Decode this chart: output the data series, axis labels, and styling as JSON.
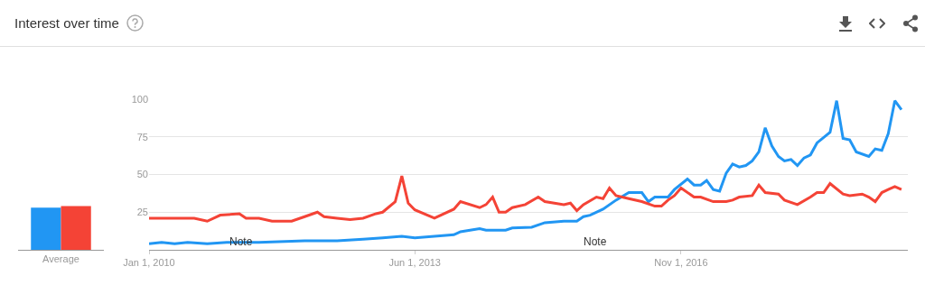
{
  "chart_data": [
    {
      "type": "bar",
      "title": "Interest over time",
      "categories": [
        "Average"
      ],
      "series": [
        {
          "color": "#2196f3",
          "values": [
            28
          ]
        },
        {
          "color": "#f44336",
          "values": [
            29
          ]
        }
      ],
      "ylim": [
        0,
        100
      ],
      "tick_labels": "x",
      "grid": false,
      "legend": false
    },
    {
      "type": "line",
      "xlim": [
        "2010-01-01",
        "2019-10-01"
      ],
      "xticks": [
        {
          "value": "2010-01-01",
          "label": "Jan 1, 2010"
        },
        {
          "value": "2013-06-01",
          "label": "Jun 1, 2013"
        },
        {
          "value": "2016-11-01",
          "label": "Nov 1, 2016"
        }
      ],
      "ylim": [
        0,
        100
      ],
      "yticks": [
        25,
        50,
        75,
        100
      ],
      "grid": "y",
      "legend": false,
      "annotations": [
        "Note",
        "Note"
      ],
      "series": [
        {
          "color": "#2196f3",
          "x": [
            "2010-01",
            "2010-03",
            "2010-05",
            "2010-07",
            "2010-10",
            "2011-01",
            "2011-06",
            "2012-01",
            "2012-06",
            "2012-10",
            "2013-01",
            "2013-04",
            "2013-06",
            "2013-09",
            "2013-12",
            "2014-01",
            "2014-04",
            "2014-05",
            "2014-08",
            "2014-09",
            "2014-12",
            "2015-02",
            "2015-05",
            "2015-07",
            "2015-08",
            "2015-09",
            "2015-11",
            "2016-01",
            "2016-03",
            "2016-05",
            "2016-06",
            "2016-07",
            "2016-09",
            "2016-10",
            "2016-12",
            "2017-01",
            "2017-02",
            "2017-03",
            "2017-04",
            "2017-05",
            "2017-06",
            "2017-07",
            "2017-08",
            "2017-09",
            "2017-10",
            "2017-11",
            "2017-12",
            "2018-01",
            "2018-02",
            "2018-03",
            "2018-04",
            "2018-05",
            "2018-06",
            "2018-07",
            "2018-08",
            "2018-10",
            "2018-11",
            "2018-12",
            "2019-01",
            "2019-02",
            "2019-04",
            "2019-05",
            "2019-06",
            "2019-07",
            "2019-08",
            "2019-09"
          ],
          "values": [
            4,
            5,
            4,
            5,
            4,
            5,
            5,
            6,
            6,
            7,
            8,
            9,
            8,
            9,
            10,
            12,
            14,
            13,
            13,
            14.5,
            15,
            18,
            19,
            19,
            22,
            23,
            27,
            33,
            38,
            38,
            32,
            35,
            35,
            40,
            47,
            43,
            43,
            46,
            40,
            39,
            51,
            57,
            55,
            56,
            59,
            65,
            81,
            69,
            62,
            59,
            60,
            56,
            61,
            63,
            71,
            78,
            99,
            74,
            73,
            65,
            62,
            67,
            66,
            77,
            99,
            93
          ]
        },
        {
          "color": "#f44336",
          "x": [
            "2010-01",
            "2010-05",
            "2010-08",
            "2010-10",
            "2010-12",
            "2011-03",
            "2011-04",
            "2011-06",
            "2011-08",
            "2011-11",
            "2012-01",
            "2012-03",
            "2012-04",
            "2012-06",
            "2012-08",
            "2012-10",
            "2012-12",
            "2013-01",
            "2013-03",
            "2013-04",
            "2013-05",
            "2013-06",
            "2013-09",
            "2013-12",
            "2014-01",
            "2014-04",
            "2014-05",
            "2014-06",
            "2014-07",
            "2014-08",
            "2014-09",
            "2014-11",
            "2015-01",
            "2015-02",
            "2015-05",
            "2015-06",
            "2015-07",
            "2015-08",
            "2015-10",
            "2015-11",
            "2015-12",
            "2016-01",
            "2016-03",
            "2016-05",
            "2016-07",
            "2016-08",
            "2016-09",
            "2016-10",
            "2016-11",
            "2017-01",
            "2017-02",
            "2017-04",
            "2017-06",
            "2017-07",
            "2017-08",
            "2017-10",
            "2017-11",
            "2017-12",
            "2018-02",
            "2018-03",
            "2018-05",
            "2018-07",
            "2018-08",
            "2018-09",
            "2018-10",
            "2018-12",
            "2019-01",
            "2019-03",
            "2019-04",
            "2019-05",
            "2019-06",
            "2019-07",
            "2019-08",
            "2019-09"
          ],
          "values": [
            21,
            21,
            21,
            19,
            23,
            24,
            21,
            21,
            19,
            19,
            22,
            25,
            22,
            21,
            20,
            21,
            24,
            25,
            32,
            49,
            31,
            26.5,
            21,
            27,
            32,
            28,
            30,
            35,
            25,
            25,
            28,
            30,
            35,
            32,
            30,
            31,
            26,
            30,
            35,
            34,
            41,
            36,
            34,
            32,
            29,
            29,
            33,
            36,
            41,
            35,
            35,
            32,
            32,
            33,
            35,
            36,
            43,
            38,
            37,
            33,
            30,
            35,
            38,
            38,
            44,
            37,
            36,
            37,
            35,
            32,
            38,
            40,
            42,
            40
          ]
        }
      ]
    }
  ]
}
